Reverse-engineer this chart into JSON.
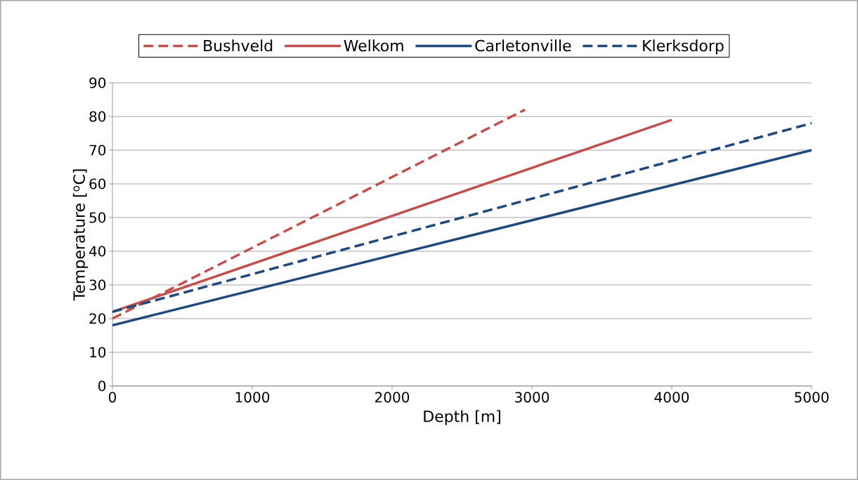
{
  "chart_data": {
    "type": "line",
    "xlabel": "Depth [m]",
    "ylabel": "Temperature [$^{o}$C]",
    "xlim": [
      0,
      5000
    ],
    "xticks": [
      0,
      1000,
      2000,
      3000,
      4000,
      5000
    ],
    "ylim": [
      0,
      90
    ],
    "yticks": [
      0,
      10,
      20,
      30,
      40,
      50,
      60,
      70,
      80,
      90
    ],
    "grid": "y",
    "legend": "top",
    "series": [
      {
        "name": "Bushveld",
        "color": "#c0504d",
        "line_style": "dashed",
        "x": [
          0,
          2950
        ],
        "values": [
          20,
          82
        ]
      },
      {
        "name": "Welkom",
        "color": "#c0504d",
        "line_style": "solid",
        "x": [
          0,
          4000
        ],
        "values": [
          22,
          79
        ]
      },
      {
        "name": "Carletonville",
        "color": "#1f497d",
        "line_style": "solid",
        "x": [
          0,
          5000
        ],
        "values": [
          18,
          70
        ]
      },
      {
        "name": "Klerksdorp",
        "color": "#1f497d",
        "line_style": "dashed",
        "x": [
          0,
          5000
        ],
        "values": [
          22,
          78
        ]
      }
    ]
  }
}
